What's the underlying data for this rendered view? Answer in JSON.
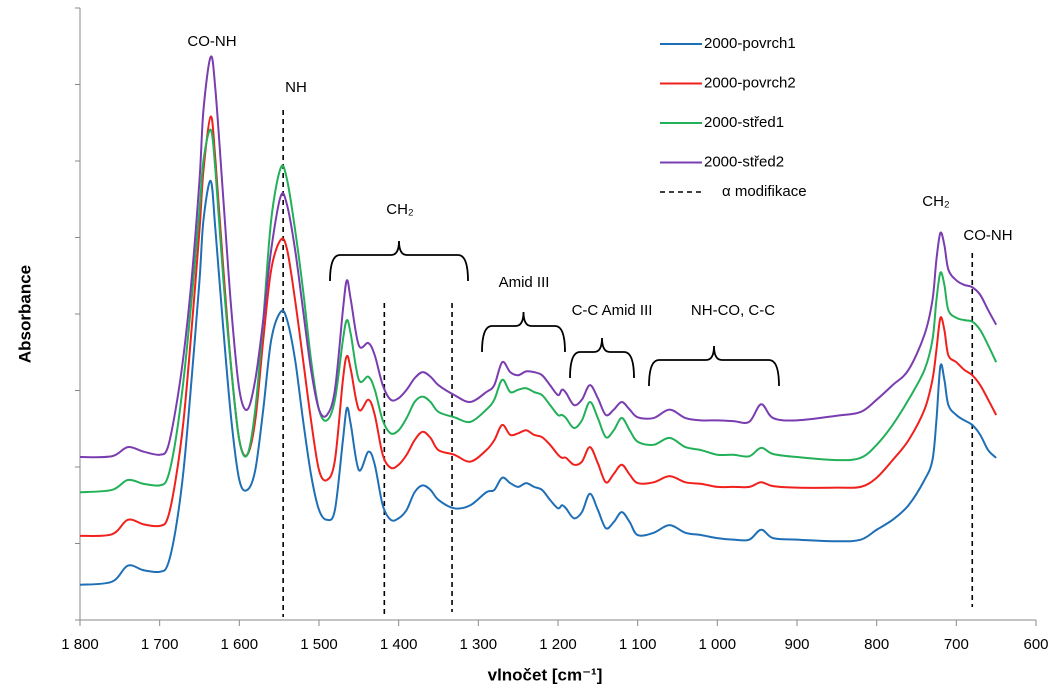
{
  "chart_data": {
    "type": "line",
    "xlabel": "vlnočet [cm⁻¹]",
    "ylabel": "Absorbance",
    "x": [
      1800,
      1760,
      1740,
      1720,
      1700,
      1690,
      1680,
      1670,
      1660,
      1650,
      1645,
      1636,
      1630,
      1620,
      1610,
      1600,
      1590,
      1580,
      1570,
      1560,
      1548,
      1540,
      1530,
      1520,
      1510,
      1500,
      1490,
      1480,
      1470,
      1465,
      1460,
      1450,
      1438,
      1430,
      1420,
      1410,
      1400,
      1390,
      1380,
      1370,
      1360,
      1350,
      1330,
      1310,
      1290,
      1280,
      1270,
      1260,
      1250,
      1240,
      1230,
      1220,
      1210,
      1200,
      1195,
      1190,
      1180,
      1170,
      1160,
      1150,
      1140,
      1130,
      1120,
      1110,
      1100,
      1080,
      1060,
      1040,
      1020,
      1000,
      980,
      960,
      945,
      930,
      900,
      850,
      820,
      800,
      780,
      760,
      740,
      730,
      725,
      720,
      715,
      710,
      700,
      690,
      680,
      670,
      660,
      650
    ],
    "series": [
      {
        "name": "2000-povrch1",
        "color": "#1f6fb6",
        "values": [
          0.46,
          0.5,
          0.71,
          0.65,
          0.63,
          0.72,
          1.18,
          1.96,
          3.14,
          4.44,
          5.23,
          5.74,
          5.1,
          3.79,
          2.61,
          1.83,
          1.7,
          1.96,
          2.75,
          3.66,
          4.03,
          3.92,
          3.4,
          2.61,
          1.9,
          1.44,
          1.31,
          1.44,
          2.35,
          2.77,
          2.55,
          1.96,
          2.2,
          2.03,
          1.5,
          1.31,
          1.33,
          1.44,
          1.67,
          1.76,
          1.7,
          1.57,
          1.46,
          1.5,
          1.67,
          1.7,
          1.86,
          1.79,
          1.74,
          1.79,
          1.74,
          1.7,
          1.57,
          1.46,
          1.5,
          1.46,
          1.33,
          1.41,
          1.65,
          1.44,
          1.2,
          1.28,
          1.41,
          1.28,
          1.11,
          1.14,
          1.24,
          1.14,
          1.11,
          1.07,
          1.05,
          1.05,
          1.18,
          1.07,
          1.05,
          1.03,
          1.05,
          1.18,
          1.31,
          1.5,
          1.83,
          2.09,
          2.61,
          3.32,
          3.14,
          2.81,
          2.68,
          2.61,
          2.55,
          2.42,
          2.22,
          2.12
        ]
      },
      {
        "name": "2000-povrch2",
        "color": "#f0201c",
        "values": [
          1.1,
          1.12,
          1.31,
          1.25,
          1.23,
          1.33,
          1.83,
          2.61,
          3.79,
          5.1,
          5.88,
          6.58,
          6.01,
          4.58,
          3.27,
          2.35,
          2.16,
          2.61,
          3.66,
          4.58,
          4.97,
          4.84,
          4.18,
          3.4,
          2.61,
          1.96,
          1.83,
          2.09,
          3.14,
          3.45,
          3.27,
          2.75,
          2.88,
          2.68,
          2.16,
          1.99,
          2.03,
          2.16,
          2.35,
          2.46,
          2.38,
          2.22,
          2.16,
          2.07,
          2.22,
          2.35,
          2.55,
          2.42,
          2.44,
          2.48,
          2.42,
          2.39,
          2.29,
          2.16,
          2.12,
          2.12,
          2.03,
          2.07,
          2.26,
          2.05,
          1.8,
          1.91,
          2.03,
          1.9,
          1.79,
          1.8,
          1.88,
          1.8,
          1.78,
          1.74,
          1.74,
          1.74,
          1.8,
          1.75,
          1.73,
          1.73,
          1.74,
          1.86,
          2.09,
          2.35,
          2.75,
          3.14,
          3.53,
          3.95,
          3.79,
          3.46,
          3.37,
          3.27,
          3.2,
          3.07,
          2.88,
          2.68
        ]
      },
      {
        "name": "2000-střed1",
        "color": "#22b058",
        "values": [
          1.67,
          1.7,
          1.83,
          1.78,
          1.76,
          1.86,
          2.35,
          3.14,
          4.18,
          5.36,
          6.01,
          6.41,
          5.88,
          4.44,
          3.27,
          2.35,
          2.16,
          2.75,
          3.92,
          5.23,
          5.91,
          5.75,
          5.1,
          4.31,
          3.4,
          2.75,
          2.61,
          2.88,
          3.66,
          3.92,
          3.73,
          3.14,
          3.18,
          3.01,
          2.61,
          2.44,
          2.48,
          2.64,
          2.85,
          2.92,
          2.85,
          2.72,
          2.65,
          2.59,
          2.75,
          2.88,
          3.14,
          2.98,
          3.01,
          3.03,
          2.98,
          2.94,
          2.81,
          2.68,
          2.68,
          2.64,
          2.51,
          2.61,
          2.85,
          2.64,
          2.39,
          2.48,
          2.64,
          2.48,
          2.33,
          2.29,
          2.38,
          2.26,
          2.22,
          2.16,
          2.16,
          2.14,
          2.25,
          2.17,
          2.13,
          2.09,
          2.12,
          2.29,
          2.55,
          2.88,
          3.27,
          3.66,
          4.18,
          4.54,
          4.38,
          4.05,
          3.95,
          3.92,
          3.9,
          3.79,
          3.59,
          3.37
        ]
      },
      {
        "name": "2000-střed2",
        "color": "#7a3db0",
        "values": [
          2.13,
          2.14,
          2.26,
          2.2,
          2.16,
          2.25,
          2.75,
          3.46,
          4.44,
          5.75,
          6.67,
          7.36,
          6.93,
          5.49,
          4.05,
          3.01,
          2.75,
          3.14,
          3.92,
          4.84,
          5.54,
          5.42,
          4.84,
          4.05,
          3.27,
          2.75,
          2.68,
          3.01,
          4.05,
          4.44,
          4.18,
          3.59,
          3.62,
          3.46,
          3.07,
          2.88,
          2.9,
          3.01,
          3.16,
          3.24,
          3.18,
          3.07,
          2.94,
          2.85,
          2.98,
          3.07,
          3.37,
          3.24,
          3.2,
          3.25,
          3.24,
          3.2,
          3.07,
          2.94,
          3.01,
          2.97,
          2.81,
          2.88,
          3.07,
          2.9,
          2.68,
          2.75,
          2.85,
          2.75,
          2.65,
          2.64,
          2.75,
          2.64,
          2.61,
          2.61,
          2.6,
          2.59,
          2.82,
          2.64,
          2.61,
          2.67,
          2.72,
          2.88,
          3.07,
          3.27,
          3.73,
          4.18,
          4.71,
          5.06,
          4.9,
          4.58,
          4.44,
          4.38,
          4.35,
          4.25,
          4.05,
          3.86
        ]
      }
    ],
    "reference_lines": {
      "name": "α modifikace",
      "x": [
        1545,
        1418,
        1333,
        680
      ]
    },
    "annotations": [
      "CO-NH",
      "NH",
      "CH₂",
      "Amid III",
      "C-C Amid III",
      "NH-CO, C-C",
      "CH₂",
      "CO-NH"
    ],
    "xlim": [
      1800,
      600
    ],
    "xticks": [
      {
        "value": 1800,
        "label": "1 800"
      },
      {
        "value": 1700,
        "label": "1 700"
      },
      {
        "value": 1600,
        "label": "1 600"
      },
      {
        "value": 1500,
        "label": "1 500"
      },
      {
        "value": 1400,
        "label": "1 400"
      },
      {
        "value": 1300,
        "label": "1 300"
      },
      {
        "value": 1200,
        "label": "1 200"
      },
      {
        "value": 1100,
        "label": "1 100"
      },
      {
        "value": 1000,
        "label": "1 000"
      },
      900,
      800,
      700,
      600
    ],
    "ylim": [
      0,
      8
    ],
    "yticks": [
      0,
      1,
      2,
      3,
      4,
      5,
      6,
      7,
      8
    ],
    "legend": "upper right"
  }
}
